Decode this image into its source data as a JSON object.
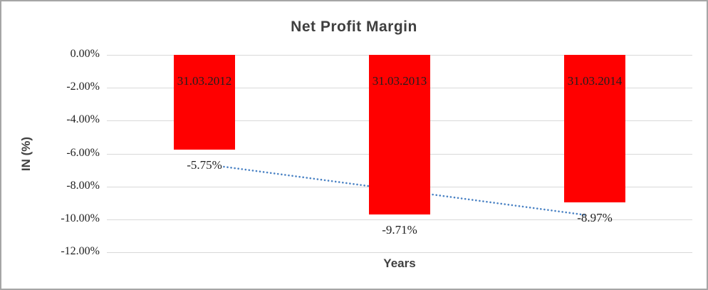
{
  "window": {
    "background_color": "#ffffff",
    "border_color": "#a6a6a6"
  },
  "chart_data": {
    "type": "bar",
    "title": "Net Profit Margin",
    "xlabel": "Years",
    "ylabel": "IN (%)",
    "categories": [
      "31.03.2012",
      "31.03.2013",
      "31.03.2014"
    ],
    "values": [
      -5.75,
      -9.71,
      -8.97
    ],
    "value_labels": [
      "-5.75%",
      "-9.71%",
      "-8.97%"
    ],
    "ylim": [
      -12,
      0
    ],
    "ytick_labels": [
      "0.00%",
      "-2.00%",
      "-4.00%",
      "-6.00%",
      "-8.00%",
      "-10.00%",
      "-12.00%"
    ],
    "grid": true,
    "legend_position": "none",
    "colors": {
      "bar": "#ff0000",
      "gridline": "#d9d9d9",
      "trendline": "#4a82c4",
      "title_text": "#3f3f3f",
      "label_text": "#1f1f1f"
    },
    "trendline": {
      "style": "dotted-linear",
      "x_start_frac": 0.2,
      "x_end_frac": 0.821,
      "value_start": -6.8,
      "value_end": -9.75
    }
  }
}
